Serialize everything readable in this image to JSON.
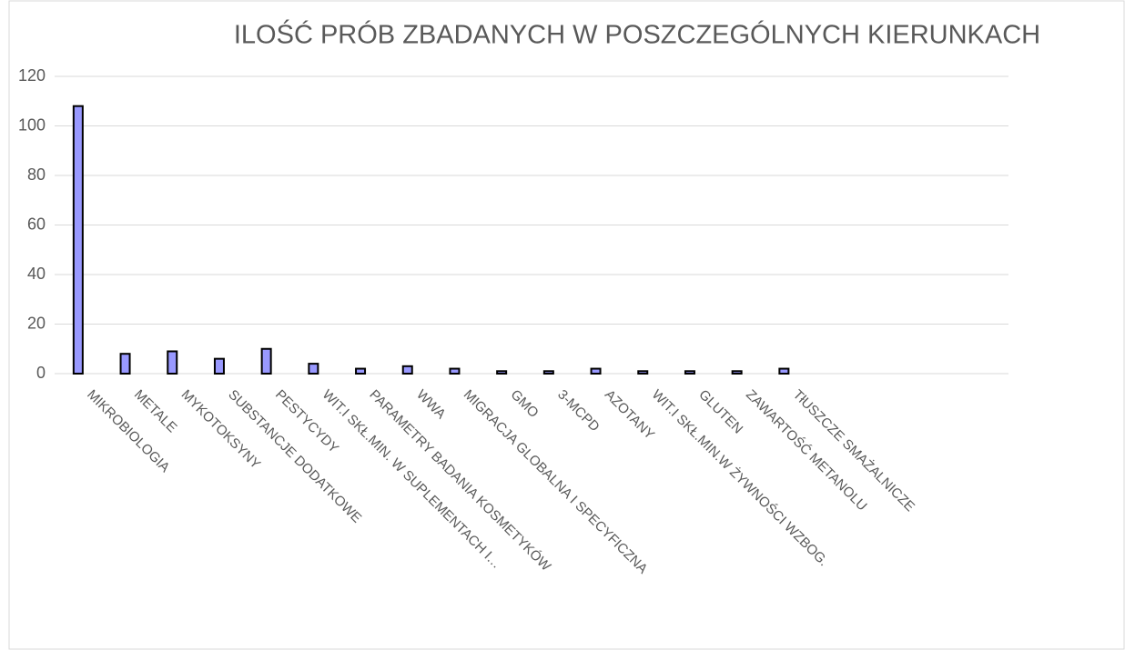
{
  "chart_data": {
    "type": "bar",
    "title": "ILOŚĆ PRÓB ZBADANYCH W POSZCZEGÓLNYCH KIERUNKACH",
    "categories": [
      "MIKROBIOLOGIA",
      "METALE",
      "MYKOTOKSYNY",
      "SUBSTANCJE DODATKOWE",
      "PESTYCYDY",
      "WIT.I SKŁ.MIN. W SUPLEMENTACH I…",
      "PARAMETRY BADANIA KOSMETYKÓW",
      "WWA",
      "MIGRACJA GLOBALNA I SPECYFICZNA",
      "GMO",
      "3-MCPD",
      "AZOTANY",
      "WIT.I SKŁ.MIN.W ŻYWNOŚCI WZBOG.",
      "GLUTEN",
      "ZAWARTOŚĆ METANOLU",
      "TłUSZCZE SMAŻALNICZE",
      null,
      null,
      null,
      null
    ],
    "values": [
      108,
      8,
      9,
      6,
      10,
      4,
      2,
      3,
      2,
      1,
      1,
      2,
      1,
      1,
      1,
      2,
      null,
      null,
      null,
      null
    ],
    "color": "#9999ff",
    "ylim": [
      0,
      120
    ],
    "yticks": [
      0,
      20,
      40,
      60,
      80,
      100,
      120
    ],
    "grid": true
  }
}
